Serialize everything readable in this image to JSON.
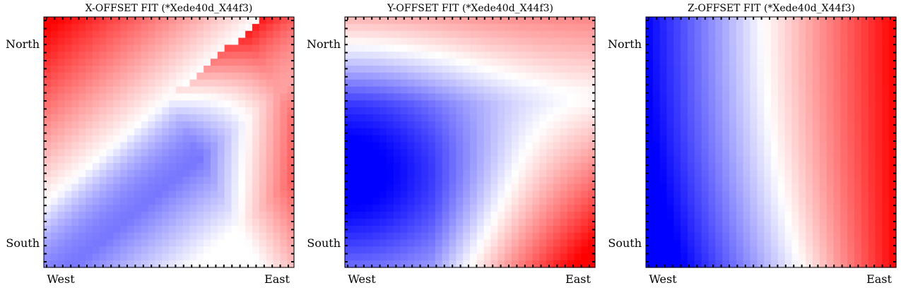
{
  "chart_data": [
    {
      "type": "heatmap",
      "title": "X-OFFSET FIT (*Xede40d_X44f3)",
      "x_tick_labels": [
        "West",
        "East"
      ],
      "y_tick_labels": [
        "North",
        "South"
      ],
      "colormap": "bwr",
      "colors": {
        "low": "#0000ff",
        "mid": "#ffffff",
        "high": "#ff0000"
      },
      "field": "diagonal band: positive top-left, negative lower-left, positive lower-right corner",
      "value_range": [
        -1,
        1
      ],
      "grid": false,
      "ticks": "minor ticks on all four sides, pointing inward"
    },
    {
      "type": "heatmap",
      "title": "Y-OFFSET FIT (*Xede40d_X44f3)",
      "x_tick_labels": [
        "West",
        "East"
      ],
      "y_tick_labels": [
        "North",
        "South"
      ],
      "colormap": "bwr",
      "colors": {
        "low": "#0000ff",
        "mid": "#ffffff",
        "high": "#ff0000"
      },
      "field": "parabolic: negative lobe on west side centered mid-height, positive toward top and bottom-right",
      "value_range": [
        -1,
        1
      ],
      "grid": false,
      "ticks": "minor ticks on all four sides, pointing inward"
    },
    {
      "type": "heatmap",
      "title": "Z-OFFSET FIT (*Xede40d_X44f3)",
      "x_tick_labels": [
        "West",
        "East"
      ],
      "y_tick_labels": [
        "North",
        "South"
      ],
      "colormap": "bwr",
      "colors": {
        "low": "#0000ff",
        "mid": "#ffffff",
        "high": "#ff0000"
      },
      "field": "east-west gradient: negative in the west, positive in the east, zero-line curving toward east at the south",
      "value_range": [
        -1,
        1
      ],
      "grid": false,
      "ticks": "minor ticks on all four sides, pointing inward"
    }
  ]
}
